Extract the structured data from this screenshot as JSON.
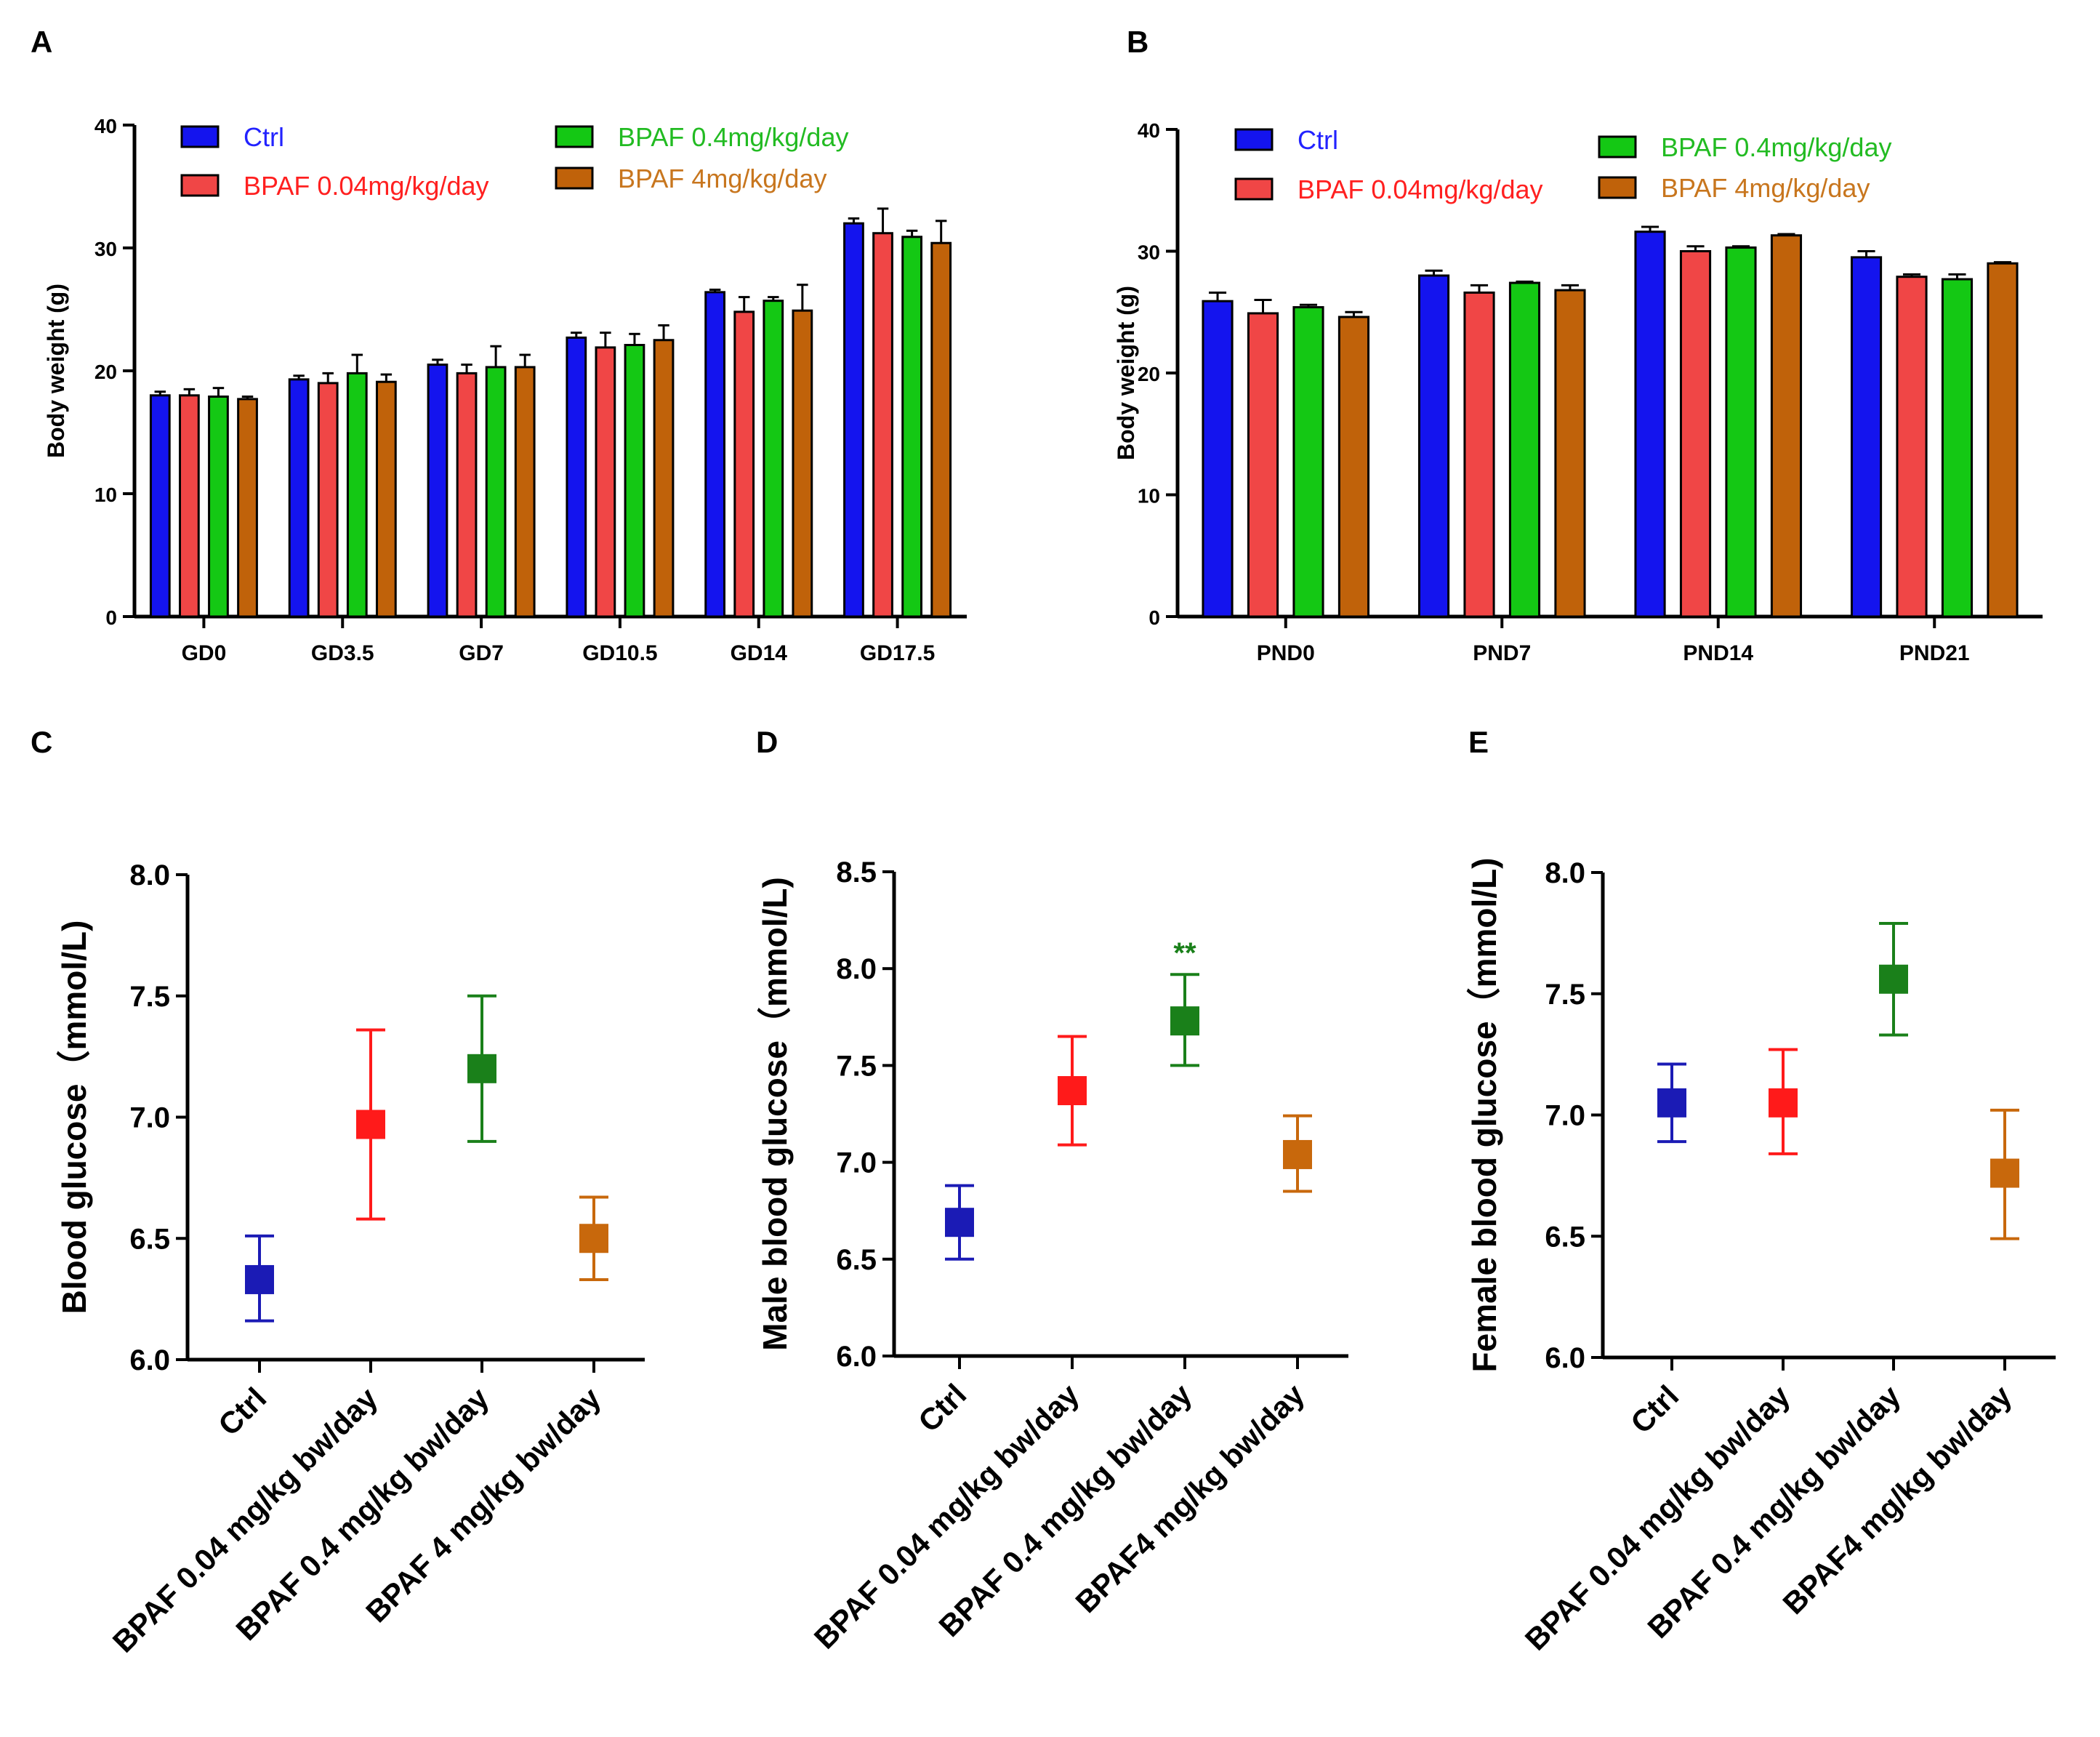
{
  "colors": {
    "bar_ctrl": "#1414ee",
    "bar_low": "#f04646",
    "bar_mid": "#14c814",
    "bar_high": "#c0620a",
    "pt_ctrl": "#1b1bb5",
    "pt_low": "#ff1a1a",
    "pt_mid": "#1a801a",
    "pt_high": "#c8680c",
    "legend_ctrl": "#2222ff",
    "legend_low": "#ff2020",
    "legend_mid": "#22bb22",
    "legend_high": "#c8761e",
    "axis": "#000000"
  },
  "chart_data": [
    {
      "panel": "A",
      "type": "bar",
      "ylabel": "Body weight (g)",
      "ylim": [
        0,
        40
      ],
      "yticks": [
        "0",
        "10",
        "20",
        "30",
        "40"
      ],
      "categories": [
        "GD0",
        "GD3.5",
        "GD7",
        "GD10.5",
        "GD14",
        "GD17.5"
      ],
      "series": [
        {
          "name": "Ctrl",
          "color_key": "ctrl",
          "values": [
            18.0,
            19.3,
            20.5,
            22.7,
            26.4,
            32.0
          ],
          "errors": [
            0.3,
            0.3,
            0.4,
            0.4,
            0.2,
            0.4
          ]
        },
        {
          "name": "BPAF 0.04mg/kg/day",
          "color_key": "low",
          "values": [
            18.0,
            19.0,
            19.8,
            21.9,
            24.8,
            31.2
          ],
          "errors": [
            0.5,
            0.8,
            0.7,
            1.2,
            1.2,
            2.0
          ]
        },
        {
          "name": "BPAF 0.4mg/kg/day",
          "color_key": "mid",
          "values": [
            17.9,
            19.8,
            20.3,
            22.1,
            25.7,
            30.9
          ],
          "errors": [
            0.7,
            1.5,
            1.7,
            0.9,
            0.3,
            0.5
          ]
        },
        {
          "name": "BPAF 4mg/kg/day",
          "color_key": "high",
          "values": [
            17.7,
            19.1,
            20.3,
            22.5,
            24.9,
            30.4
          ],
          "errors": [
            0.2,
            0.6,
            1.0,
            1.2,
            2.1,
            1.8
          ]
        }
      ]
    },
    {
      "panel": "B",
      "type": "bar",
      "ylabel": "Body weight (g)",
      "ylim": [
        0,
        40
      ],
      "yticks": [
        "0",
        "10",
        "20",
        "30",
        "40"
      ],
      "categories": [
        "PND0",
        "PND7",
        "PND14",
        "PND21"
      ],
      "series": [
        {
          "name": "Ctrl",
          "color_key": "ctrl",
          "values": [
            25.9,
            28.0,
            31.6,
            29.5
          ],
          "errors": [
            0.7,
            0.4,
            0.4,
            0.5
          ]
        },
        {
          "name": "BPAF 0.04mg/kg/day",
          "color_key": "low",
          "values": [
            24.9,
            26.6,
            30.0,
            27.9
          ],
          "errors": [
            1.1,
            0.6,
            0.4,
            0.2
          ]
        },
        {
          "name": "BPAF 0.4mg/kg/day",
          "color_key": "mid",
          "values": [
            25.4,
            27.4,
            30.3,
            27.7
          ],
          "errors": [
            0.2,
            0.1,
            0.1,
            0.4
          ]
        },
        {
          "name": "BPAF 4mg/kg/day",
          "color_key": "high",
          "values": [
            24.6,
            26.8,
            31.3,
            29.0
          ],
          "errors": [
            0.4,
            0.4,
            0.1,
            0.1
          ]
        }
      ]
    },
    {
      "panel": "C",
      "type": "scatter",
      "ylabel": "Blood glucose（mmol/L)",
      "ylim": [
        6.0,
        8.0
      ],
      "yticks": [
        "6.0",
        "6.5",
        "7.0",
        "7.5",
        "8.0"
      ],
      "categories": [
        "Ctrl",
        "BPAF 0.04 mg/kg bw/day",
        "BPAF 0.4 mg/kg bw/day",
        "BPAF 4 mg/kg bw/day"
      ],
      "color_keys": [
        "ctrl",
        "low",
        "mid",
        "high"
      ],
      "means": [
        6.33,
        6.97,
        7.2,
        6.5
      ],
      "upper": [
        6.51,
        7.36,
        7.5,
        6.67
      ],
      "lower": [
        6.16,
        6.58,
        6.9,
        6.33
      ],
      "annotations": [
        "",
        "",
        "",
        ""
      ]
    },
    {
      "panel": "D",
      "type": "scatter",
      "ylabel": "Male blood glucose（mmol/L)",
      "ylim": [
        6.0,
        8.5
      ],
      "yticks": [
        "6.0",
        "6.5",
        "7.0",
        "7.5",
        "8.0",
        "8.5"
      ],
      "categories": [
        "Ctrl",
        "BPAF 0.04 mg/kg bw/day",
        "BPAF 0.4 mg/kg bw/day",
        "BPAF4 mg/kg bw/day"
      ],
      "color_keys": [
        "ctrl",
        "low",
        "mid",
        "high"
      ],
      "means": [
        6.69,
        7.37,
        7.73,
        7.04
      ],
      "upper": [
        6.88,
        7.65,
        7.97,
        7.24
      ],
      "lower": [
        6.5,
        7.09,
        7.5,
        6.85
      ],
      "annotations": [
        "",
        "",
        "**",
        ""
      ]
    },
    {
      "panel": "E",
      "type": "scatter",
      "ylabel": "Female blood glucose（mmol/L)",
      "ylim": [
        6.0,
        8.0
      ],
      "yticks": [
        "6.0",
        "6.5",
        "7.0",
        "7.5",
        "8.0"
      ],
      "categories": [
        "Ctrl",
        "BPAF 0.04 mg/kg bw/day",
        "BPAF 0.4 mg/kg bw/day",
        "BPAF4 mg/kg bw/day"
      ],
      "color_keys": [
        "ctrl",
        "low",
        "mid",
        "high"
      ],
      "means": [
        7.05,
        7.05,
        7.56,
        6.76
      ],
      "upper": [
        7.21,
        7.27,
        7.79,
        7.02
      ],
      "lower": [
        6.89,
        6.84,
        7.33,
        6.49
      ],
      "annotations": [
        "",
        "",
        "",
        ""
      ]
    }
  ]
}
